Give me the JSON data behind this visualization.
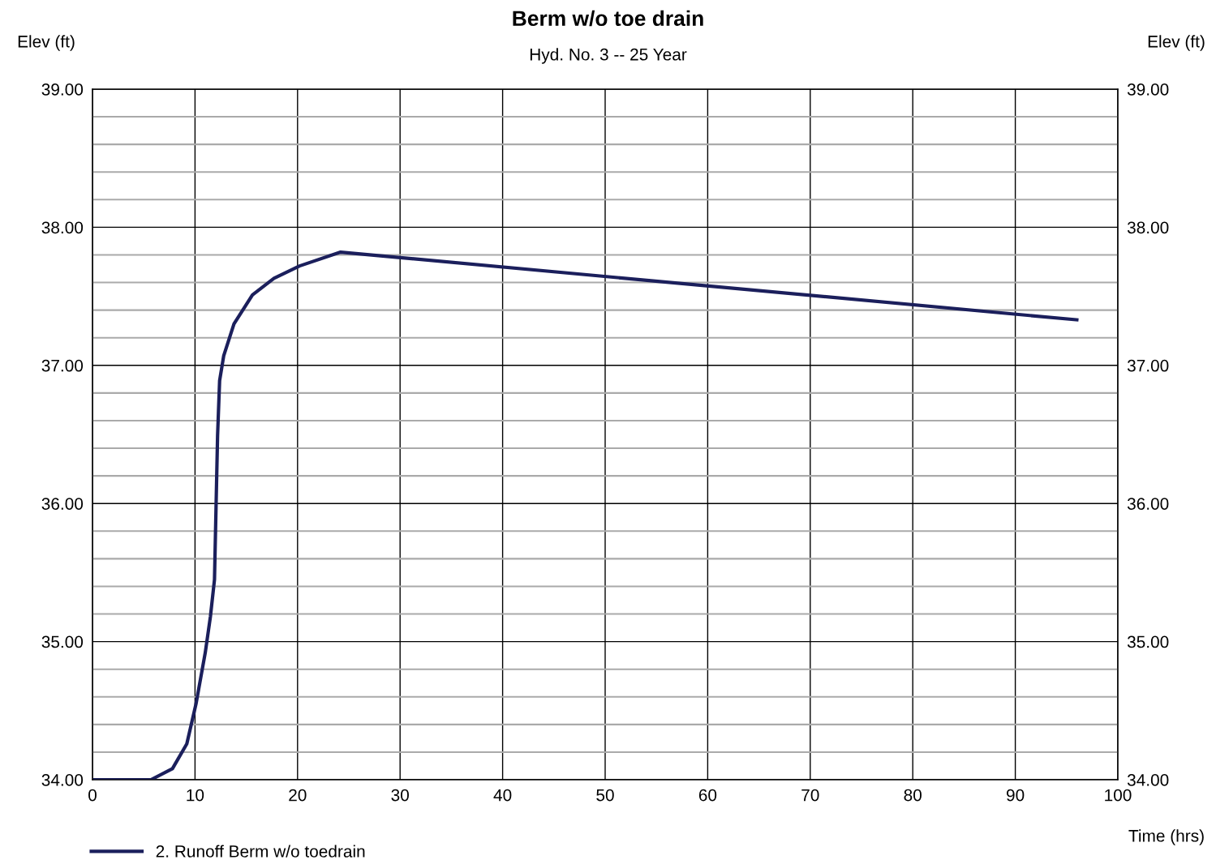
{
  "chart_data": {
    "type": "line",
    "title": "Berm w/o toe drain",
    "subtitle": "Hyd. No. 3 -- 25 Year",
    "xlabel": "Time (hrs)",
    "ylabel": "Elev (ft)",
    "y2label": "Elev (ft)",
    "series": [
      {
        "name": "2. Runoff Berm w/o toedrain",
        "color": "#1b1f5c",
        "x": [
          0,
          5.7,
          7.8,
          9.2,
          10.1,
          11.0,
          11.5,
          11.9,
          12.05,
          12.2,
          12.4,
          12.8,
          13.8,
          15.6,
          17.7,
          20.2,
          24.2,
          96
        ],
        "values": [
          34.0,
          34.0,
          34.08,
          34.26,
          34.55,
          34.92,
          35.18,
          35.45,
          35.97,
          36.49,
          36.89,
          37.07,
          37.3,
          37.51,
          37.63,
          37.72,
          37.82,
          37.33
        ]
      }
    ],
    "xlim": [
      0,
      100
    ],
    "xticks": [
      0,
      10,
      20,
      30,
      40,
      50,
      60,
      70,
      80,
      90,
      100
    ],
    "ylim": [
      34,
      39
    ],
    "yticks": [
      {
        "value": 34,
        "label": "34.00"
      },
      {
        "value": 34.2,
        "label": null
      },
      {
        "value": 34.4,
        "label": null
      },
      {
        "value": 34.6,
        "label": null
      },
      {
        "value": 34.8,
        "label": null
      },
      {
        "value": 35,
        "label": "35.00"
      },
      {
        "value": 35.2,
        "label": null
      },
      {
        "value": 35.4,
        "label": null
      },
      {
        "value": 35.6,
        "label": null
      },
      {
        "value": 35.8,
        "label": null
      },
      {
        "value": 36,
        "label": "36.00"
      },
      {
        "value": 36.2,
        "label": null
      },
      {
        "value": 36.4,
        "label": null
      },
      {
        "value": 36.6,
        "label": null
      },
      {
        "value": 36.8,
        "label": null
      },
      {
        "value": 37,
        "label": "37.00"
      },
      {
        "value": 37.2,
        "label": null
      },
      {
        "value": 37.4,
        "label": null
      },
      {
        "value": 37.6,
        "label": null
      },
      {
        "value": 37.8,
        "label": null
      },
      {
        "value": 38,
        "label": "38.00"
      },
      {
        "value": 38.2,
        "label": null
      },
      {
        "value": 38.4,
        "label": null
      },
      {
        "value": 38.6,
        "label": null
      },
      {
        "value": 38.8,
        "label": null
      },
      {
        "value": 39,
        "label": "39.00"
      }
    ],
    "y2lim": [
      34,
      39
    ],
    "y2ticks": [
      {
        "value": 34,
        "label": "34.00"
      },
      {
        "value": 35,
        "label": "35.00"
      },
      {
        "value": 36,
        "label": "36.00"
      },
      {
        "value": 37,
        "label": "37.00"
      },
      {
        "value": 38,
        "label": "38.00"
      },
      {
        "value": 39,
        "label": "39.00"
      }
    ],
    "grid": true,
    "legend": "bottom left",
    "marker": "none",
    "line_style": "solid"
  }
}
